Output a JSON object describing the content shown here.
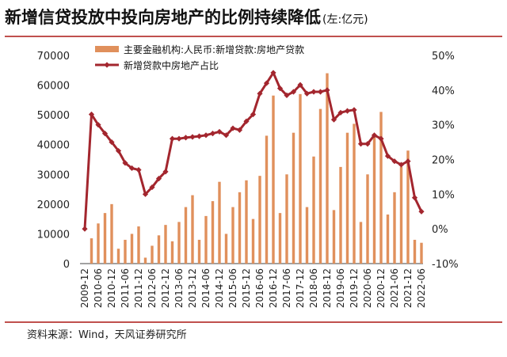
{
  "title": "新增信贷投放中投向房地产的比例持续降低",
  "unit": "(左:亿元)",
  "source": "资料来源：Wind，天风证券研究所",
  "colors": {
    "bar": "#e0905c",
    "line": "#a3262e",
    "rule": "#c0504d"
  },
  "chart_data": {
    "type": "bar+line",
    "x_tick_labels": [
      "2009-12",
      "2010-06",
      "2010-12",
      "2011-06",
      "2011-12",
      "2012-06",
      "2012-12",
      "2013-06",
      "2013-12",
      "2014-06",
      "2014-12",
      "2015-06",
      "2015-12",
      "2016-06",
      "2016-12",
      "2017-06",
      "2017-12",
      "2018-06",
      "2018-12",
      "2019-06",
      "2019-12",
      "2020-06",
      "2020-12",
      "2021-06",
      "2021-12",
      "2022-06"
    ],
    "y_left": {
      "min": 0,
      "max": 70000,
      "ticks": [
        0,
        10000,
        20000,
        30000,
        40000,
        50000,
        60000,
        70000
      ]
    },
    "y_right": {
      "min": -10,
      "max": 50,
      "ticks": [
        "-10%",
        "0%",
        "10%",
        "20%",
        "30%",
        "40%",
        "50%"
      ],
      "tick_values": [
        -10,
        0,
        10,
        20,
        30,
        40,
        50
      ]
    },
    "grid": false,
    "legend_position": "top-left",
    "series": [
      {
        "name": "主要金融机构:人民币:新增贷款:房地产贷款",
        "type": "bar",
        "axis": "left",
        "x_start": "2010-03",
        "frequency": "quarterly",
        "values": [
          8500,
          13500,
          17000,
          20000,
          5000,
          8000,
          10000,
          12500,
          2000,
          6000,
          9500,
          13000,
          7500,
          14000,
          19000,
          23000,
          8000,
          16000,
          21000,
          27500,
          10000,
          19000,
          24000,
          28000,
          15000,
          29500,
          43000,
          56500,
          17000,
          30000,
          44000,
          57000,
          19000,
          36000,
          52000,
          64000,
          18000,
          32500,
          44000,
          47000,
          14000,
          30000,
          42500,
          51000,
          16500,
          24000,
          32500,
          38000,
          8000,
          7000
        ]
      },
      {
        "name": "新增贷款中房地产占比",
        "type": "line",
        "axis": "right",
        "unit": "%",
        "x_start": "2009-12",
        "frequency": "quarterly",
        "values": [
          0,
          33,
          30,
          27.5,
          25,
          22.5,
          19,
          17.5,
          17,
          10,
          12,
          14.5,
          16.5,
          26,
          26,
          26.3,
          26.5,
          26.7,
          27,
          27.5,
          28,
          27,
          29,
          28.5,
          31,
          33,
          39,
          42,
          45,
          40.5,
          38.5,
          39.5,
          41.5,
          39,
          39.5,
          39.5,
          40,
          31.5,
          33.5,
          34,
          34.3,
          24.5,
          24.5,
          27,
          26,
          21,
          19.5,
          18.5,
          19.5,
          9,
          5
        ]
      }
    ]
  }
}
